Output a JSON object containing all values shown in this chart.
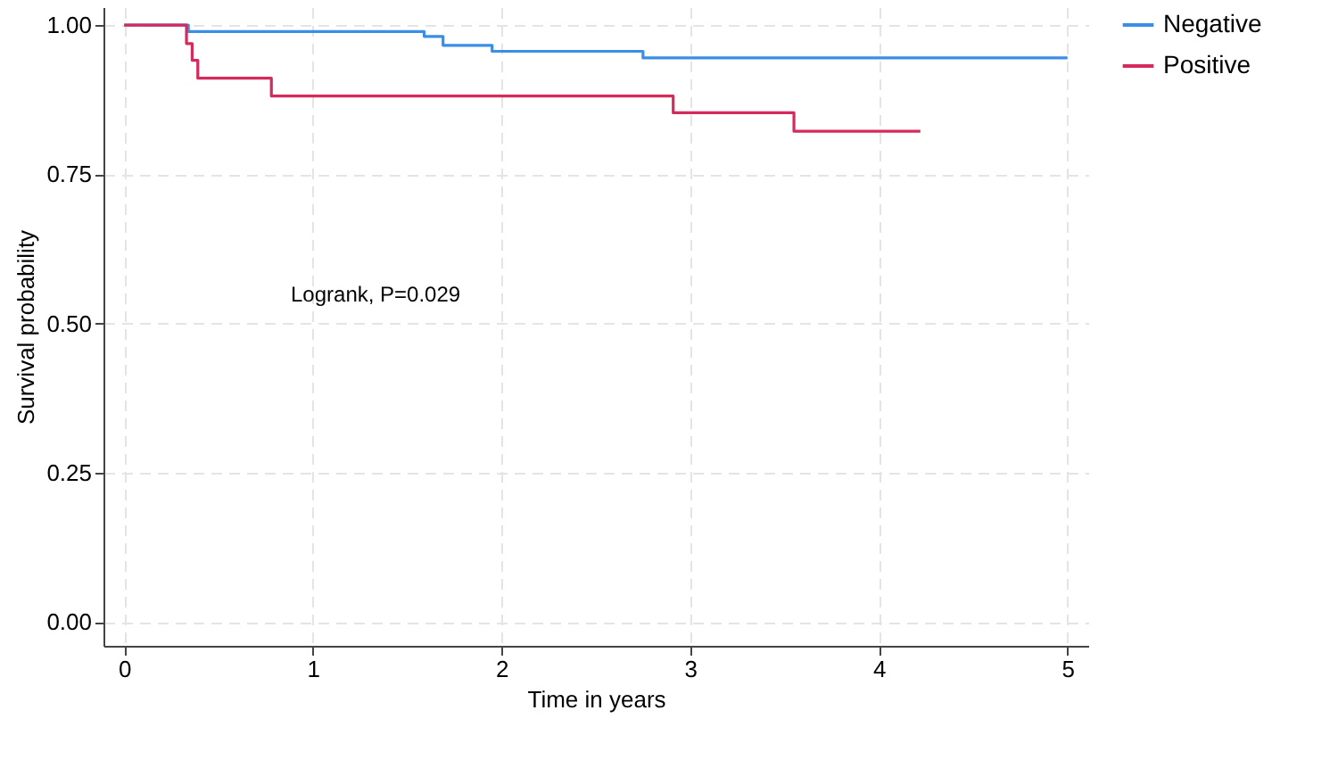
{
  "chart_data": {
    "type": "step",
    "xlabel": "Time in years",
    "ylabel": "Survival probability",
    "annotations": [
      "Logrank, P=0.029"
    ],
    "series": [
      {
        "name": "Negative",
        "color": "#3a8ee6",
        "x": [
          0,
          0.34,
          1.59,
          1.69,
          1.95,
          2.75,
          5
        ],
        "values": [
          1,
          0.989,
          0.981,
          0.966,
          0.956,
          0.945,
          0.945
        ]
      },
      {
        "name": "Positive",
        "color": "#d42a5c",
        "x": [
          0,
          0.33,
          0.36,
          0.39,
          0.78,
          2.91,
          3.55,
          4.22
        ],
        "values": [
          1,
          0.969,
          0.941,
          0.911,
          0.881,
          0.853,
          0.822,
          0.822
        ]
      }
    ],
    "xlim": [
      -0.11,
      5.11
    ],
    "ylim": [
      -0.04,
      1.03
    ],
    "xticks": [
      0,
      1,
      2,
      3,
      4,
      5
    ],
    "yticks": [
      {
        "value": 0,
        "label": "0.00"
      },
      0.25,
      {
        "value": 0.5,
        "label": "0.50"
      },
      0.75,
      {
        "value": 1,
        "label": "1.00"
      }
    ],
    "grid": true,
    "legend": "right",
    "marker": "none",
    "line_style": "solid"
  }
}
